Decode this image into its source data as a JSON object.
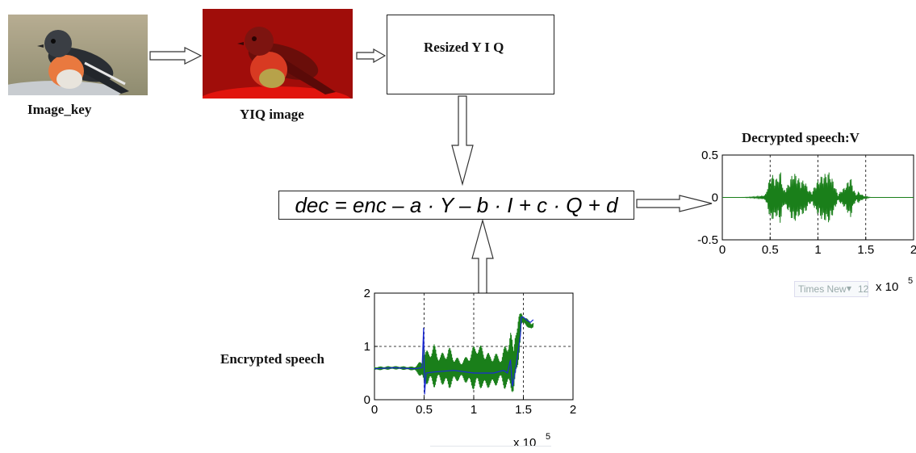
{
  "captions": {
    "image_key": "Image_key",
    "yiq_image": "YIQ image",
    "resized": "Resized Y I Q",
    "decrypted_title": "Decrypted speech:V",
    "encrypted_label": "Encrypted speech"
  },
  "formula": "dec = enc – a · Y – b · I + c · Q + d",
  "ghost_ui": {
    "font_name": "Times New",
    "font_size": "12"
  },
  "chart_data": [
    {
      "type": "line",
      "title": "Decrypted speech:V",
      "xlabel": "",
      "ylabel": "",
      "xlim": [
        0,
        200000
      ],
      "ylim": [
        -0.5,
        0.5
      ],
      "xticks": [
        "0",
        "0.5",
        "1",
        "1.5",
        "2"
      ],
      "yticks": [
        "0.5",
        "0",
        "-0.5"
      ],
      "x_multiplier": "x 10",
      "x_exponent": "5",
      "grid": "dashed",
      "series": [
        {
          "color": "#1a7f1a",
          "envelope": [
            [
              0,
              0.0
            ],
            [
              20000,
              0.0
            ],
            [
              38000,
              0.01
            ],
            [
              45000,
              0.03
            ],
            [
              48000,
              0.16
            ],
            [
              51000,
              0.28
            ],
            [
              54000,
              0.25
            ],
            [
              57000,
              0.22
            ],
            [
              61000,
              0.31
            ],
            [
              64000,
              0.08
            ],
            [
              67000,
              0.12
            ],
            [
              70000,
              0.18
            ],
            [
              74000,
              0.3
            ],
            [
              78000,
              0.26
            ],
            [
              82000,
              0.19
            ],
            [
              86000,
              0.21
            ],
            [
              90000,
              0.09
            ],
            [
              94000,
              0.06
            ],
            [
              97000,
              0.15
            ],
            [
              100000,
              0.2
            ],
            [
              104000,
              0.26
            ],
            [
              108000,
              0.28
            ],
            [
              112000,
              0.3
            ],
            [
              115000,
              0.22
            ],
            [
              118000,
              0.13
            ],
            [
              121000,
              0.03
            ],
            [
              124000,
              0.08
            ],
            [
              128000,
              0.12
            ],
            [
              131000,
              0.18
            ],
            [
              134000,
              0.25
            ],
            [
              137000,
              0.11
            ],
            [
              140000,
              0.03
            ],
            [
              142000,
              0.07
            ],
            [
              145000,
              0.04
            ],
            [
              148000,
              0.02
            ],
            [
              155000,
              0.0
            ],
            [
              200000,
              0.0
            ]
          ]
        }
      ]
    },
    {
      "type": "line",
      "title": "",
      "xlabel": "",
      "ylabel": "",
      "xlim": [
        0,
        200000
      ],
      "ylim": [
        0,
        2
      ],
      "xticks": [
        "0",
        "0.5",
        "1",
        "1.5",
        "2"
      ],
      "yticks": [
        "2",
        "1",
        "0"
      ],
      "x_multiplier": "x 10",
      "x_exponent": "5",
      "grid": "dashed",
      "series": [
        {
          "color": "#1a7f1a",
          "band": [
            [
              0,
              0.55,
              0.62
            ],
            [
              20000,
              0.57,
              0.63
            ],
            [
              40000,
              0.55,
              0.62
            ],
            [
              48000,
              0.4,
              0.75
            ],
            [
              49500,
              0.1,
              1.3
            ],
            [
              51000,
              0.3,
              0.9
            ],
            [
              55000,
              0.28,
              0.95
            ],
            [
              60000,
              0.22,
              1.05
            ],
            [
              65000,
              0.35,
              0.85
            ],
            [
              70000,
              0.25,
              0.9
            ],
            [
              75000,
              0.2,
              1.0
            ],
            [
              80000,
              0.3,
              0.85
            ],
            [
              86000,
              0.38,
              0.75
            ],
            [
              92000,
              0.32,
              0.8
            ],
            [
              98000,
              0.2,
              0.95
            ],
            [
              103000,
              0.18,
              1.1
            ],
            [
              108000,
              0.22,
              1.0
            ],
            [
              112000,
              0.15,
              0.95
            ],
            [
              116000,
              0.25,
              0.85
            ],
            [
              120000,
              0.2,
              0.9
            ],
            [
              124000,
              0.3,
              0.85
            ],
            [
              128000,
              0.35,
              0.82
            ],
            [
              131000,
              0.2,
              1.0
            ],
            [
              134000,
              0.1,
              1.15
            ],
            [
              137000,
              0.2,
              1.35
            ],
            [
              140000,
              0.1,
              0.95
            ],
            [
              142000,
              0.15,
              1.55
            ],
            [
              144000,
              0.45,
              1.5
            ],
            [
              146000,
              0.9,
              1.6
            ],
            [
              148000,
              1.4,
              1.65
            ],
            [
              152000,
              1.4,
              1.55
            ],
            [
              155000,
              1.35,
              1.5
            ],
            [
              158000,
              1.3,
              1.45
            ],
            [
              160000,
              1.35,
              1.45
            ]
          ]
        },
        {
          "color": "#1c2ad6",
          "points": [
            [
              0,
              0.58
            ],
            [
              20000,
              0.6
            ],
            [
              40000,
              0.58
            ],
            [
              48000,
              0.6
            ],
            [
              49500,
              1.35
            ],
            [
              50500,
              0.1
            ],
            [
              52000,
              0.5
            ],
            [
              60000,
              0.52
            ],
            [
              80000,
              0.55
            ],
            [
              100000,
              0.5
            ],
            [
              120000,
              0.5
            ],
            [
              130000,
              0.55
            ],
            [
              134000,
              0.5
            ],
            [
              137000,
              0.75
            ],
            [
              139000,
              0.25
            ],
            [
              142000,
              0.55
            ],
            [
              145000,
              0.95
            ],
            [
              147000,
              1.2
            ],
            [
              148000,
              1.55
            ],
            [
              150000,
              1.55
            ],
            [
              153000,
              1.5
            ],
            [
              157000,
              1.45
            ],
            [
              160000,
              1.5
            ]
          ]
        }
      ]
    }
  ]
}
